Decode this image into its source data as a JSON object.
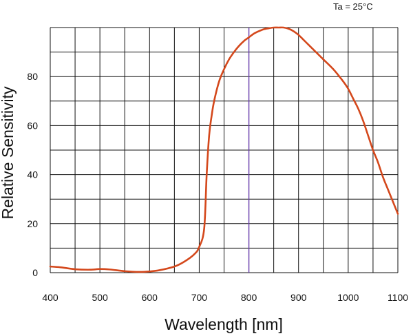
{
  "chart_data": {
    "type": "line",
    "title": "",
    "xlabel": "Wavelength [nm]",
    "ylabel": "Relative Sensitivity",
    "annotation": "Ta = 25°C",
    "xlim": [
      400,
      1100
    ],
    "ylim": [
      0,
      100
    ],
    "x_ticks": [
      400,
      500,
      600,
      700,
      800,
      900,
      1000,
      1100
    ],
    "y_ticks": [
      0,
      20,
      40,
      60,
      80
    ],
    "x_grid_step": 50,
    "y_grid_step": 10,
    "grid": true,
    "marker_line_x": 800,
    "colors": {
      "curve": "#d4481c",
      "marker": "#6a3fb0",
      "grid": "#111111"
    },
    "series": [
      {
        "name": "Relative Sensitivity",
        "x": [
          400,
          420,
          450,
          480,
          500,
          520,
          550,
          580,
          600,
          620,
          650,
          670,
          690,
          700,
          710,
          715,
          720,
          725,
          730,
          740,
          750,
          760,
          770,
          780,
          790,
          800,
          810,
          820,
          830,
          840,
          850,
          860,
          870,
          880,
          890,
          900,
          910,
          920,
          930,
          950,
          970,
          990,
          1000,
          1010,
          1020,
          1030,
          1040,
          1050,
          1060,
          1070,
          1080,
          1090,
          1100
        ],
        "y": [
          2.5,
          2.2,
          1.4,
          1.2,
          1.5,
          1.3,
          0.6,
          0.3,
          0.5,
          1.0,
          2.5,
          4.5,
          7.5,
          10.5,
          18,
          40,
          56,
          64,
          70,
          78,
          83,
          87,
          90,
          92.5,
          94.5,
          96,
          97.5,
          98.5,
          99.3,
          99.7,
          100,
          100,
          100,
          99.5,
          98.5,
          97,
          95,
          93,
          91,
          87,
          83,
          78,
          75,
          71,
          67,
          62,
          56,
          50,
          45,
          39,
          34,
          29,
          24
        ]
      }
    ]
  }
}
